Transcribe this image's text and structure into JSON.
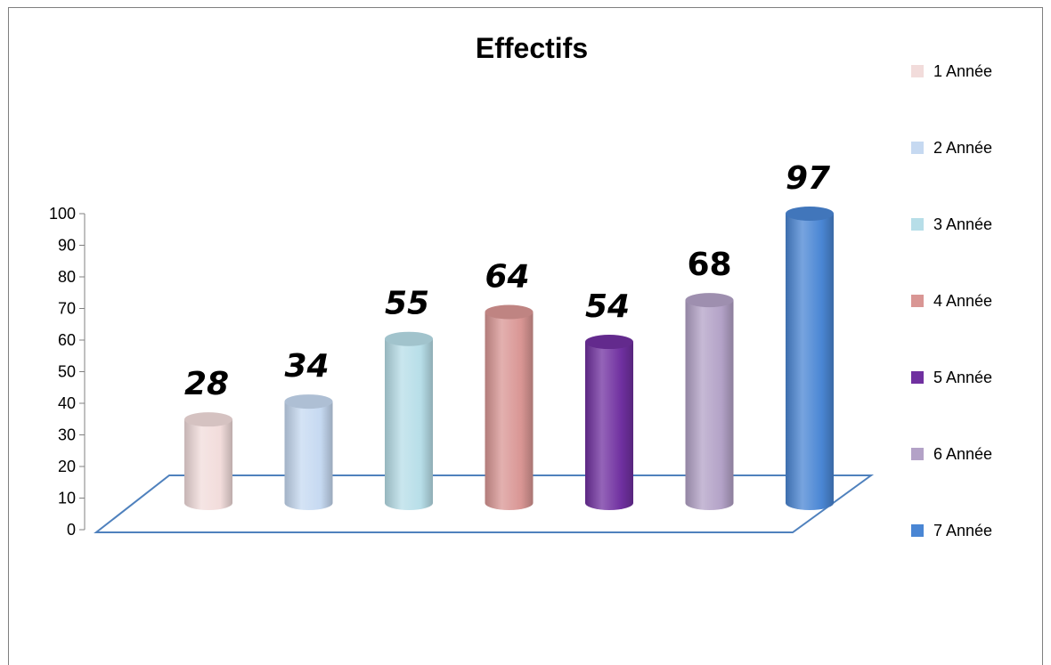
{
  "chart_data": {
    "type": "bar",
    "style": "3d-cylinder",
    "title": "Effectifs",
    "xlabel": "",
    "ylabel": "",
    "ylim": [
      0,
      100
    ],
    "yticks": [
      "0",
      "10",
      "20",
      "30",
      "40",
      "50",
      "60",
      "70",
      "80",
      "90",
      "100"
    ],
    "legend_position": "right",
    "grid": false,
    "series": [
      {
        "name": "1 Année",
        "value": 28,
        "label": "28",
        "color": "#F2DCDB"
      },
      {
        "name": "2 Année",
        "value": 34,
        "label": "34",
        "color": "#C6D9F1"
      },
      {
        "name": "3  Année",
        "value": 55,
        "label": "55",
        "color": "#B7DEE8"
      },
      {
        "name": "4  Année",
        "value": 64,
        "label": "64",
        "color": "#D99694"
      },
      {
        "name": "5  Année",
        "value": 54,
        "label": "54",
        "color": "#7030A0"
      },
      {
        "name": "6  Année",
        "value": 68,
        "label": "68",
        "color": "#B3A2C7"
      },
      {
        "name": "7  Année",
        "value": 97,
        "label": "97",
        "color": "#4A86D4"
      }
    ],
    "floor_color": "#4F81BD"
  }
}
